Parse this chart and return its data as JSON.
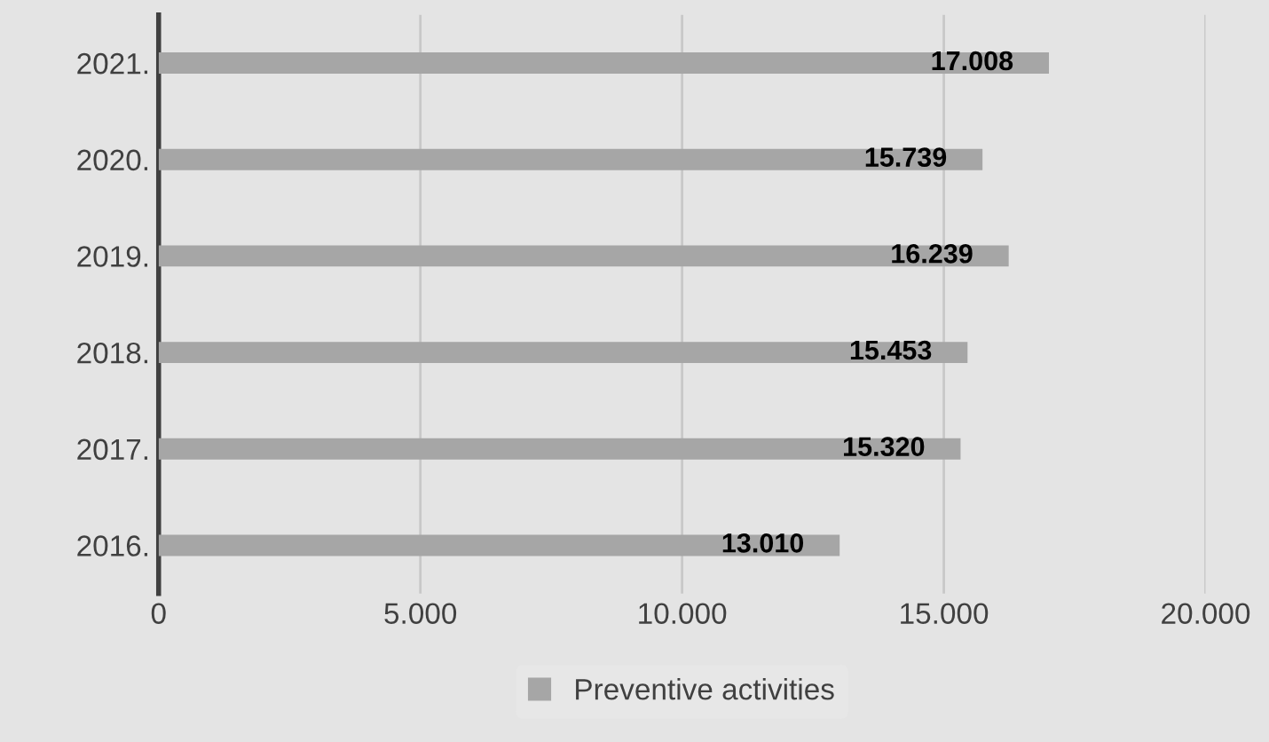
{
  "chart_data": {
    "type": "bar",
    "orientation": "horizontal",
    "categories": [
      "2021.",
      "2020.",
      "2019.",
      "2018.",
      "2017.",
      "2016."
    ],
    "series": [
      {
        "name": "Preventive activities",
        "color": "#a6a6a6",
        "values": [
          17008,
          15739,
          16239,
          15453,
          15320,
          13010
        ],
        "value_labels": [
          "17.008",
          "15.739",
          "16.239",
          "15.453",
          "15.320",
          "13.010"
        ]
      }
    ],
    "xlim": [
      0,
      20000
    ],
    "xticks": [
      {
        "value": 0,
        "label": "0"
      },
      {
        "value": 5000,
        "label": "5.000"
      },
      {
        "value": 10000,
        "label": "10.000"
      },
      {
        "value": 15000,
        "label": "15.000"
      },
      {
        "value": 20000,
        "label": "20.000"
      }
    ],
    "grid": "x",
    "legend": "bottom"
  }
}
